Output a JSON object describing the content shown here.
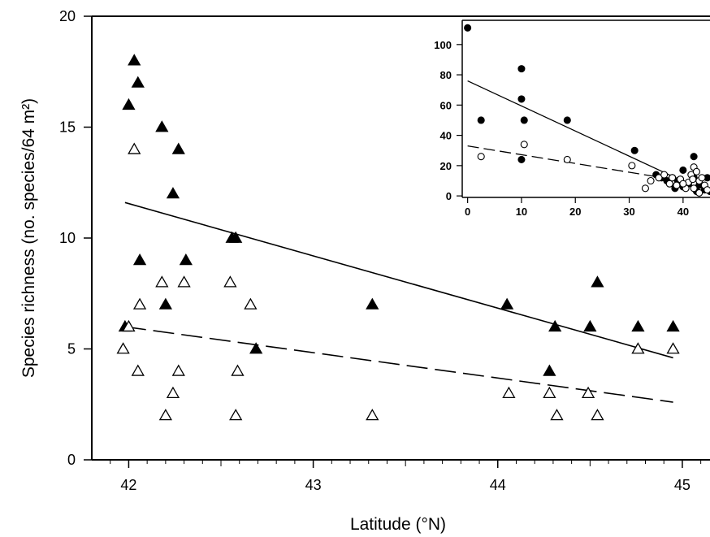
{
  "chart_data": [
    {
      "type": "scatter",
      "title": "",
      "xlabel": "Latitude (°N)",
      "ylabel": "Species richness (no. species/64 m²)",
      "xlim": [
        41.8,
        45.15
      ],
      "ylim": [
        0,
        20
      ],
      "x_ticks": [
        "42",
        "43",
        "44",
        "45"
      ],
      "y_ticks": [
        "0",
        "5",
        "10",
        "15",
        "20"
      ],
      "grid": false,
      "series": [
        {
          "marker": "filled-triangle",
          "points": [
            [
              42.03,
              18
            ],
            [
              42.05,
              17
            ],
            [
              42.0,
              16
            ],
            [
              42.18,
              15
            ],
            [
              42.27,
              14
            ],
            [
              42.24,
              12
            ],
            [
              42.56,
              10
            ],
            [
              42.58,
              10
            ],
            [
              42.06,
              9
            ],
            [
              42.31,
              9
            ],
            [
              41.98,
              6
            ],
            [
              42.2,
              7
            ],
            [
              42.69,
              5
            ],
            [
              43.32,
              7
            ],
            [
              44.05,
              7
            ],
            [
              44.28,
              4
            ],
            [
              44.31,
              6
            ],
            [
              44.5,
              6
            ],
            [
              44.54,
              8
            ],
            [
              44.76,
              6
            ],
            [
              44.95,
              6
            ]
          ],
          "fit": [
            [
              41.98,
              11.6
            ],
            [
              44.95,
              4.6
            ]
          ]
        },
        {
          "marker": "open-triangle",
          "points": [
            [
              42.03,
              14
            ],
            [
              42.18,
              8
            ],
            [
              42.06,
              7
            ],
            [
              42.3,
              8
            ],
            [
              42.55,
              8
            ],
            [
              42.66,
              7
            ],
            [
              42.0,
              6
            ],
            [
              41.97,
              5
            ],
            [
              42.05,
              4
            ],
            [
              42.27,
              4
            ],
            [
              42.59,
              4
            ],
            [
              42.24,
              3
            ],
            [
              42.2,
              2
            ],
            [
              42.58,
              2
            ],
            [
              43.32,
              2
            ],
            [
              44.06,
              3
            ],
            [
              44.28,
              3
            ],
            [
              44.32,
              2
            ],
            [
              44.49,
              3
            ],
            [
              44.54,
              2
            ],
            [
              44.76,
              5
            ],
            [
              44.95,
              5
            ]
          ],
          "fit": [
            [
              41.98,
              6.0
            ],
            [
              44.95,
              2.6
            ]
          ]
        }
      ]
    },
    {
      "type": "scatter",
      "title": "",
      "xlabel": "",
      "ylabel": "",
      "xlim": [
        -1,
        45
      ],
      "ylim": [
        -1,
        116
      ],
      "x_ticks": [
        "0",
        "10",
        "20",
        "30",
        "40"
      ],
      "y_ticks": [
        "0",
        "20",
        "40",
        "60",
        "80",
        "100"
      ],
      "grid": false,
      "series": [
        {
          "marker": "filled-circle",
          "points": [
            [
              0,
              111
            ],
            [
              2.5,
              50
            ],
            [
              10,
              84
            ],
            [
              10,
              64
            ],
            [
              10,
              24
            ],
            [
              10.5,
              50
            ],
            [
              18.5,
              50
            ],
            [
              31,
              30
            ],
            [
              35,
              14
            ],
            [
              36,
              12
            ],
            [
              37,
              10
            ],
            [
              38,
              12
            ],
            [
              39,
              10
            ],
            [
              40,
              17
            ],
            [
              41,
              8
            ],
            [
              42,
              26
            ],
            [
              42,
              12
            ],
            [
              43,
              7
            ],
            [
              44,
              4
            ],
            [
              45,
              3
            ],
            [
              40,
              6
            ],
            [
              38.5,
              5
            ],
            [
              42.5,
              3
            ],
            [
              44.5,
              12
            ]
          ],
          "fit": [
            [
              0,
              76
            ],
            [
              38,
              13
            ]
          ]
        },
        {
          "marker": "open-circle",
          "points": [
            [
              2.5,
              26
            ],
            [
              10.5,
              34
            ],
            [
              18.5,
              24
            ],
            [
              30.5,
              20
            ],
            [
              33,
              5
            ],
            [
              34,
              10
            ],
            [
              35.5,
              12
            ],
            [
              36.5,
              14
            ],
            [
              37.5,
              8
            ],
            [
              38,
              12
            ],
            [
              38.8,
              7
            ],
            [
              39.5,
              11
            ],
            [
              40.5,
              5
            ],
            [
              41,
              9
            ],
            [
              41.5,
              14
            ],
            [
              42,
              19
            ],
            [
              42,
              5
            ],
            [
              42.5,
              16
            ],
            [
              43,
              10
            ],
            [
              43.5,
              12
            ],
            [
              44,
              7
            ],
            [
              44.5,
              4
            ],
            [
              43,
              2
            ],
            [
              41.8,
              11
            ],
            [
              40,
              8
            ]
          ],
          "fit": [
            [
              0,
              33
            ],
            [
              38,
              11
            ]
          ]
        }
      ]
    }
  ]
}
